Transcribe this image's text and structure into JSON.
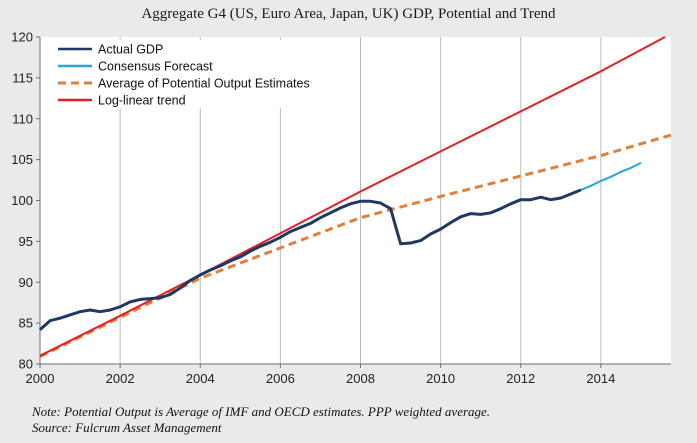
{
  "chart_data": {
    "type": "line",
    "title": "Aggregate G4 (US, Euro Area, Japan,  UK)  GDP, Potential and Trend",
    "xlabel": "",
    "ylabel": "",
    "xlim": [
      2000,
      2015.75
    ],
    "ylim": [
      80,
      120
    ],
    "x_ticks": [
      2000,
      2002,
      2004,
      2006,
      2008,
      2010,
      2012,
      2014
    ],
    "y_ticks": [
      80,
      85,
      90,
      95,
      100,
      105,
      110,
      115,
      120
    ],
    "grid": "vertical",
    "legend_position": "top-left",
    "series": [
      {
        "name": "Actual GDP",
        "color": "#1f3864",
        "style": "solid",
        "x": [
          2000.0,
          2000.25,
          2000.5,
          2000.75,
          2001.0,
          2001.25,
          2001.5,
          2001.75,
          2002.0,
          2002.25,
          2002.5,
          2002.75,
          2003.0,
          2003.25,
          2003.5,
          2003.75,
          2004.0,
          2004.25,
          2004.5,
          2004.75,
          2005.0,
          2005.25,
          2005.5,
          2005.75,
          2006.0,
          2006.25,
          2006.5,
          2006.75,
          2007.0,
          2007.25,
          2007.5,
          2007.75,
          2008.0,
          2008.25,
          2008.5,
          2008.75,
          2009.0,
          2009.25,
          2009.5,
          2009.75,
          2010.0,
          2010.25,
          2010.5,
          2010.75,
          2011.0,
          2011.25,
          2011.5,
          2011.75,
          2012.0,
          2012.25,
          2012.5,
          2012.75,
          2013.0,
          2013.25,
          2013.5
        ],
        "y": [
          84.2,
          85.3,
          85.6,
          86.0,
          86.4,
          86.6,
          86.4,
          86.6,
          87.0,
          87.6,
          87.9,
          88.0,
          88.1,
          88.5,
          89.3,
          90.2,
          90.9,
          91.5,
          92.0,
          92.6,
          93.1,
          93.8,
          94.4,
          94.9,
          95.5,
          96.2,
          96.7,
          97.2,
          97.9,
          98.5,
          99.1,
          99.6,
          99.9,
          99.9,
          99.7,
          99.0,
          94.7,
          94.8,
          95.1,
          95.9,
          96.5,
          97.3,
          98.0,
          98.4,
          98.3,
          98.5,
          99.0,
          99.6,
          100.1,
          100.1,
          100.4,
          100.1,
          100.3,
          100.8,
          101.3
        ]
      },
      {
        "name": "Consensus Forecast",
        "color": "#29a3d8",
        "style": "solid",
        "x": [
          2013.5,
          2013.75,
          2014.0,
          2014.25,
          2014.5,
          2014.75,
          2015.0
        ],
        "y": [
          101.3,
          101.8,
          102.4,
          102.9,
          103.5,
          104.0,
          104.6
        ]
      },
      {
        "name": "Average of Potential Output Estimates",
        "color": "#e0803a",
        "style": "dashed",
        "x": [
          2000.0,
          2004.0,
          2006.0,
          2008.0,
          2010.0,
          2012.0,
          2014.0,
          2015.75
        ],
        "y": [
          80.9,
          90.5,
          94.2,
          97.9,
          100.5,
          103.0,
          105.5,
          108.0
        ]
      },
      {
        "name": "Log-linear trend",
        "color": "#e11f26",
        "style": "solid",
        "x": [
          2000.0,
          2002.0,
          2004.0,
          2006.0,
          2008.0,
          2010.0,
          2012.0,
          2014.0,
          2015.6
        ],
        "y": [
          81.0,
          85.9,
          90.9,
          96.0,
          101.1,
          106.0,
          110.9,
          115.8,
          120.0
        ]
      }
    ]
  },
  "footnotes": {
    "note": "Note: Potential Output is Average of IMF and OECD estimates. PPP weighted average.",
    "source": "Source: Fulcrum Asset Management"
  }
}
